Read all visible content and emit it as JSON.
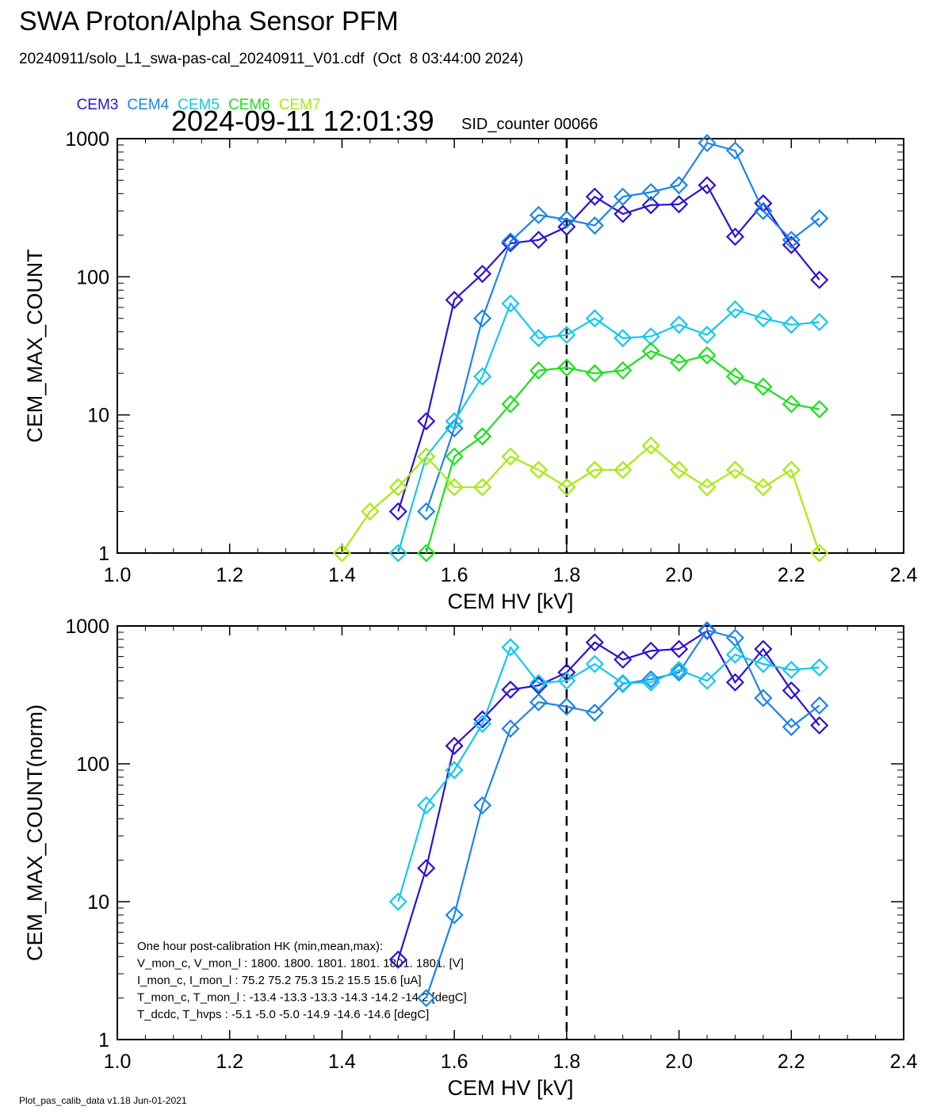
{
  "header": {
    "title": "SWA Proton/Alpha Sensor PFM",
    "subtitle": "20240911/solo_L1_swa-pas-cal_20240911_V01.cdf  (Oct  8 03:44:00 2024)",
    "timestamp": "2024-09-11 12:01:39",
    "sid_counter": "SID_counter 00066"
  },
  "legend": [
    {
      "label": "CEM3",
      "color": "#2f10d8"
    },
    {
      "label": "CEM4",
      "color": "#1a84ef"
    },
    {
      "label": "CEM5",
      "color": "#14c8ef"
    },
    {
      "label": "CEM6",
      "color": "#18e418"
    },
    {
      "label": "CEM7",
      "color": "#a6ec0e"
    }
  ],
  "footer": "Plot_pas_calib_data v1.18 Jun-01-2021",
  "hk_box": {
    "lines": [
      "One hour post-calibration HK (min,mean,max):",
      "V_mon_c, V_mon_l :   1800.  1800.  1801.      1801.  1801.  1801.  [V]",
      "I_mon_c,  I_mon_l :     75.2   75.2   75.3         15.2   15.5   15.6  [uA]",
      "T_mon_c, T_mon_l :   -13.4  -13.3  -13.3        -14.3  -14.2  -14.2  [degC]",
      "T_dcdc,    T_hvps :     -5.1   -5.0   -5.0        -14.9  -14.6  -14.6  [degC]"
    ]
  },
  "chart_data": [
    {
      "type": "line",
      "scale_y": "log",
      "xlabel": "CEM HV [kV]",
      "ylabel": "CEM_MAX_COUNT",
      "xlim": [
        1.0,
        2.4
      ],
      "ylim": [
        1,
        1000
      ],
      "xticks": [
        "1.0",
        "1.2",
        "1.4",
        "1.6",
        "1.8",
        "2.0",
        "2.2",
        "2.4"
      ],
      "yticks": [
        "1",
        "10",
        "100",
        "1000"
      ],
      "vline": 1.8,
      "marker": "diamond",
      "series": [
        {
          "name": "CEM3",
          "color": "#2f10d8",
          "x": [
            1.5,
            1.55,
            1.6,
            1.65,
            1.7,
            1.75,
            1.8,
            1.85,
            1.9,
            1.95,
            2.0,
            2.05,
            2.1,
            2.15,
            2.2,
            2.25
          ],
          "y": [
            2,
            9,
            68,
            105,
            175,
            185,
            230,
            380,
            285,
            330,
            335,
            460,
            195,
            340,
            170,
            95
          ]
        },
        {
          "name": "CEM4",
          "color": "#1a84ef",
          "x": [
            1.55,
            1.6,
            1.65,
            1.7,
            1.75,
            1.8,
            1.85,
            1.9,
            1.95,
            2.0,
            2.05,
            2.1,
            2.15,
            2.2,
            2.25
          ],
          "y": [
            2,
            8,
            50,
            180,
            280,
            260,
            235,
            380,
            410,
            460,
            930,
            820,
            300,
            185,
            265
          ]
        },
        {
          "name": "CEM5",
          "color": "#14c8ef",
          "x": [
            1.5,
            1.55,
            1.6,
            1.65,
            1.7,
            1.75,
            1.8,
            1.85,
            1.9,
            1.95,
            2.0,
            2.05,
            2.1,
            2.15,
            2.2,
            2.25
          ],
          "y": [
            1,
            5,
            9,
            19,
            64,
            36,
            38,
            50,
            36,
            37,
            45,
            38,
            58,
            50,
            45,
            47
          ]
        },
        {
          "name": "CEM6",
          "color": "#18e418",
          "x": [
            1.55,
            1.6,
            1.65,
            1.7,
            1.75,
            1.8,
            1.85,
            1.9,
            1.95,
            2.0,
            2.05,
            2.1,
            2.15,
            2.2,
            2.25
          ],
          "y": [
            1,
            5,
            7,
            12,
            21,
            22,
            20,
            21,
            29,
            24,
            27,
            19,
            16,
            12,
            11
          ]
        },
        {
          "name": "CEM7",
          "color": "#a6ec0e",
          "x": [
            1.4,
            1.45,
            1.5,
            1.55,
            1.6,
            1.65,
            1.7,
            1.75,
            1.8,
            1.85,
            1.9,
            1.95,
            2.0,
            2.05,
            2.1,
            2.15,
            2.2,
            2.25
          ],
          "y": [
            1,
            2,
            3,
            5,
            3,
            3,
            5,
            4,
            3,
            4,
            4,
            6,
            4,
            3,
            4,
            3,
            4,
            1
          ]
        }
      ]
    },
    {
      "type": "line",
      "scale_y": "log",
      "xlabel": "CEM HV [kV]",
      "ylabel": "CEM_MAX_COUNT(norm)",
      "xlim": [
        1.0,
        2.4
      ],
      "ylim": [
        1,
        1000
      ],
      "xticks": [
        "1.0",
        "1.2",
        "1.4",
        "1.6",
        "1.8",
        "2.0",
        "2.2",
        "2.4"
      ],
      "yticks": [
        "1",
        "10",
        "100",
        "1000"
      ],
      "vline": 1.8,
      "marker": "diamond",
      "series": [
        {
          "name": "CEM3",
          "color": "#2f10d8",
          "x": [
            1.5,
            1.55,
            1.6,
            1.65,
            1.7,
            1.75,
            1.8,
            1.85,
            1.9,
            1.95,
            2.0,
            2.05,
            2.1,
            2.15,
            2.2,
            2.25
          ],
          "y": [
            3.8,
            17.5,
            135,
            210,
            345,
            370,
            460,
            760,
            570,
            660,
            680,
            920,
            390,
            680,
            340,
            190
          ]
        },
        {
          "name": "CEM4",
          "color": "#1a84ef",
          "x": [
            1.55,
            1.6,
            1.65,
            1.7,
            1.75,
            1.8,
            1.85,
            1.9,
            1.95,
            2.0,
            2.05,
            2.1,
            2.15,
            2.2,
            2.25
          ],
          "y": [
            2,
            8,
            50,
            180,
            280,
            260,
            235,
            380,
            410,
            460,
            930,
            820,
            300,
            185,
            265
          ]
        },
        {
          "name": "CEM5",
          "color": "#14c8ef",
          "x": [
            1.5,
            1.55,
            1.6,
            1.65,
            1.7,
            1.75,
            1.8,
            1.85,
            1.9,
            1.95,
            2.0,
            2.05,
            2.1,
            2.15,
            2.2,
            2.25
          ],
          "y": [
            10,
            50,
            90,
            195,
            700,
            385,
            400,
            530,
            385,
            390,
            480,
            400,
            620,
            530,
            480,
            500
          ]
        }
      ]
    }
  ]
}
